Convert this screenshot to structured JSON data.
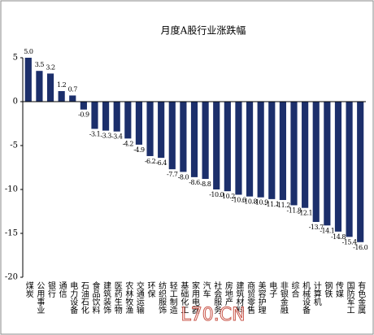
{
  "chart_data": {
    "type": "bar",
    "title": "月度A股行业涨跌幅",
    "categories": [
      "煤炭",
      "公用事业",
      "银行",
      "通信",
      "电力设备",
      "石油石化",
      "食品饮料",
      "建筑装饰",
      "医药生物",
      "农林牧渔",
      "交通运输",
      "环保",
      "纺织服饰",
      "轻工制造",
      "基础化工",
      "家用电器",
      "汽车",
      "社会服务",
      "房地产",
      "建筑材料",
      "商贸零售",
      "美容护理",
      "电子",
      "非银金融",
      "综合",
      "机械设备",
      "计算机",
      "钢铁",
      "传媒",
      "国防军工",
      "有色金属"
    ],
    "values": [
      5.0,
      3.5,
      3.2,
      1.2,
      0.7,
      -0.9,
      -3.1,
      -3.3,
      -3.4,
      -4.2,
      -4.9,
      -6.2,
      -6.4,
      -7.7,
      -8.0,
      -8.6,
      -8.8,
      -10.0,
      -10.2,
      -10.6,
      -10.8,
      -10.9,
      -11.1,
      -11.2,
      -11.8,
      -12.1,
      -13.7,
      -14.1,
      -14.8,
      -15.4,
      -16.0
    ],
    "value_labels": [
      "5.0",
      "3.5",
      "3.2",
      "1.2",
      "0.7",
      "-0.9",
      "-3.1",
      "-3.3",
      "-3.4",
      "-4.2",
      "-4.9",
      "-6.2",
      "-6.4",
      "-7.7",
      "-8.0",
      "-8.6",
      "-8.8",
      "-10.0",
      "-10.2",
      "-10.6",
      "-10.8",
      "-10.9",
      "-11.1",
      "-11.2",
      "-11.8",
      "-12.1",
      "-13.7",
      "-14.1",
      "-14.8",
      "-15.4",
      "-16.0"
    ],
    "color": "#1c2f6b",
    "ylim": [
      -20,
      5
    ],
    "yticks": [
      5,
      0,
      -5,
      -10,
      -15,
      -20
    ],
    "grid": false,
    "watermark": "L70.CN"
  }
}
